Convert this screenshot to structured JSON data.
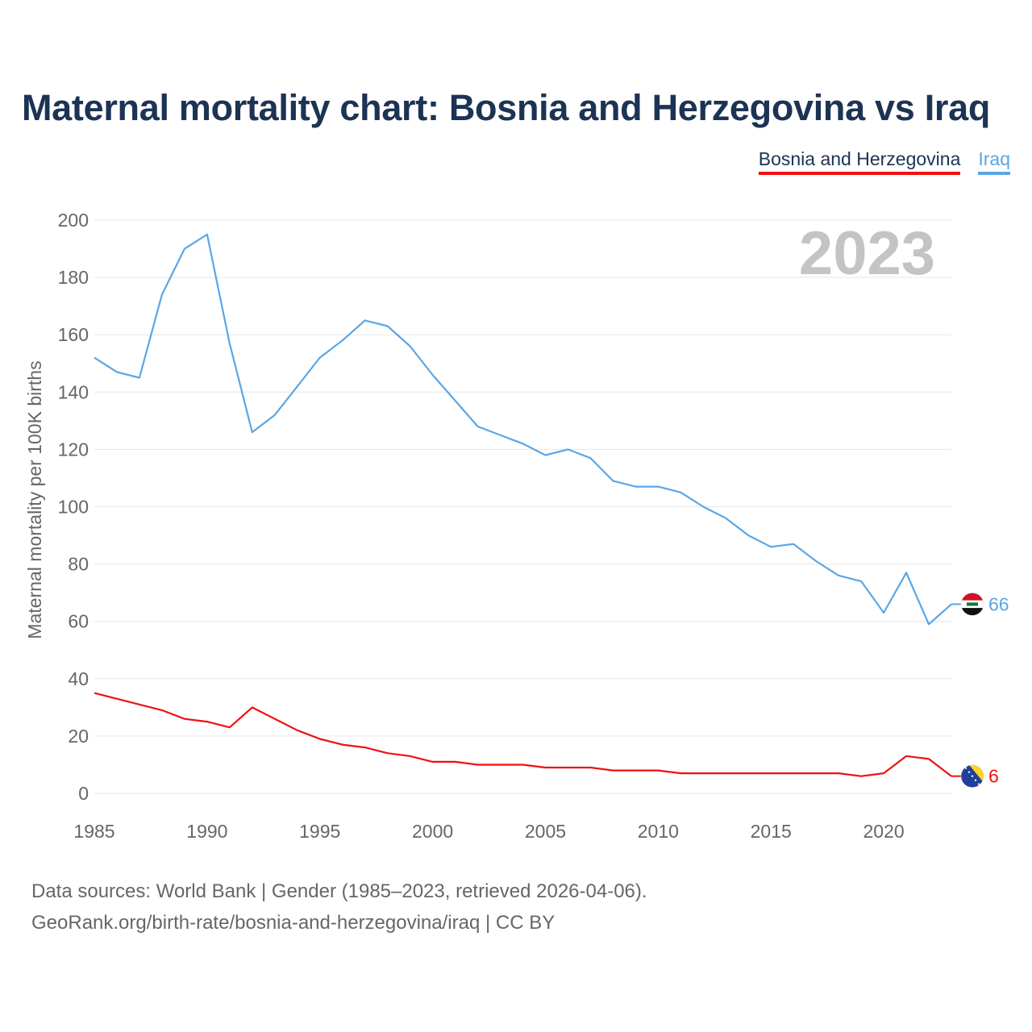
{
  "title": "Maternal mortality chart: Bosnia and Herzegovina vs Iraq",
  "legend": {
    "bih": "Bosnia and Herzegovina",
    "iraq": "Iraq"
  },
  "sources": {
    "line1": "Data sources: World Bank | Gender (1985–2023, retrieved 2026-04-06).",
    "line2": "GeoRank.org/birth-rate/bosnia-and-herzegovina/iraq | CC BY"
  },
  "chart_data": {
    "type": "line",
    "title": "Maternal mortality chart: Bosnia and Herzegovina vs Iraq",
    "year_label": "2023",
    "xlabel": "",
    "ylabel": "Maternal mortality per 100K births",
    "xlim": [
      1985,
      2023
    ],
    "ylim": [
      0,
      200
    ],
    "xticks": [
      1985,
      1990,
      1995,
      2000,
      2005,
      2010,
      2015,
      2020
    ],
    "yticks": [
      0,
      20,
      40,
      60,
      80,
      100,
      120,
      140,
      160,
      180,
      200
    ],
    "grid": true,
    "x": [
      1985,
      1986,
      1987,
      1988,
      1989,
      1990,
      1991,
      1992,
      1993,
      1994,
      1995,
      1996,
      1997,
      1998,
      1999,
      2000,
      2001,
      2002,
      2003,
      2004,
      2005,
      2006,
      2007,
      2008,
      2009,
      2010,
      2011,
      2012,
      2013,
      2014,
      2015,
      2016,
      2017,
      2018,
      2019,
      2020,
      2021,
      2022,
      2023
    ],
    "series": [
      {
        "name": "Iraq",
        "color": "#5aa6e6",
        "end_label": "66",
        "values": [
          152,
          147,
          145,
          174,
          190,
          195,
          157,
          126,
          132,
          142,
          152,
          158,
          165,
          163,
          156,
          146,
          137,
          128,
          125,
          122,
          118,
          120,
          117,
          109,
          107,
          107,
          105,
          100,
          96,
          90,
          86,
          87,
          81,
          76,
          74,
          63,
          77,
          59,
          66
        ]
      },
      {
        "name": "Bosnia and Herzegovina",
        "color": "#ee1111",
        "end_label": "6",
        "values": [
          35,
          33,
          31,
          29,
          26,
          25,
          23,
          30,
          26,
          22,
          19,
          17,
          16,
          14,
          13,
          11,
          11,
          10,
          10,
          10,
          9,
          9,
          9,
          8,
          8,
          8,
          7,
          7,
          7,
          7,
          7,
          7,
          7,
          7,
          6,
          7,
          13,
          12,
          6
        ]
      }
    ]
  }
}
